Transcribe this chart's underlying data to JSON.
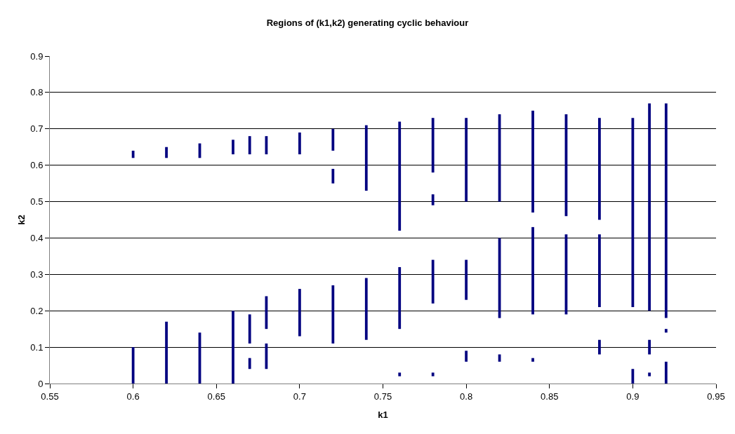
{
  "chart_data": {
    "type": "bar",
    "title": "Regions of (k1,k2) generating cyclic behaviour",
    "xlabel": "k1",
    "ylabel": "k2",
    "series": [
      {
        "color": "#000080",
        "x": [
          0.6,
          0.62,
          0.64,
          0.66,
          0.67,
          0.68,
          0.7,
          0.72,
          0.74,
          0.76,
          0.78,
          0.8,
          0.82,
          0.84,
          0.86,
          0.88,
          0.9,
          0.91,
          0.92
        ],
        "base": [
          0,
          0,
          0,
          0,
          0.04,
          0.04,
          0.13,
          0.11,
          0.12,
          0.02,
          0.02,
          0.06,
          0.06,
          0.06,
          0.19,
          0.08,
          0,
          0.02,
          0
        ],
        "values": [
          0.1,
          0.17,
          0.14,
          0.2,
          0.03,
          0.07,
          0.13,
          0.16,
          0.17,
          0.01,
          0.01,
          0.03,
          0.02,
          0.01,
          0.22,
          0.04,
          0.04,
          0.01,
          0.06
        ]
      },
      {
        "color": "#000080",
        "x": [
          0.6,
          0.62,
          0.64,
          0.66,
          0.67,
          0.68,
          0.7,
          0.72,
          0.74,
          0.76,
          0.78,
          0.8,
          0.82,
          0.84,
          0.86,
          0.88,
          0.9,
          0.91,
          0.92
        ],
        "base": [
          0.62,
          0.62,
          0.62,
          0.63,
          0.11,
          0.15,
          0.63,
          0.55,
          0.53,
          0.15,
          0.22,
          0.23,
          0.18,
          0.19,
          0.46,
          0.21,
          0.21,
          0.08,
          0.14
        ],
        "values": [
          0.02,
          0.03,
          0.04,
          0.04,
          0.08,
          0.09,
          0.06,
          0.04,
          0.18,
          0.17,
          0.12,
          0.11,
          0.22,
          0.24,
          0.28,
          0.2,
          0.52,
          0.04,
          0.01
        ]
      },
      {
        "color": "#000080",
        "x": [
          0.67,
          0.68,
          0.72,
          0.76,
          0.78,
          0.8,
          0.82,
          0.84,
          0.88,
          0.91,
          0.92
        ],
        "base": [
          0.63,
          0.63,
          0.64,
          0.42,
          0.49,
          0.5,
          0.5,
          0.47,
          0.45,
          0.2,
          0.18
        ],
        "values": [
          0.05,
          0.05,
          0.06,
          0.3,
          0.03,
          0.23,
          0.24,
          0.28,
          0.28,
          0.57,
          0.59
        ]
      },
      {
        "color": "#000080",
        "x": [
          0.78
        ],
        "base": [
          0.58
        ],
        "values": [
          0.15
        ]
      }
    ],
    "xlim": [
      0.55,
      0.95
    ],
    "xticks": [
      0.55,
      0.6,
      0.65,
      0.7,
      0.75,
      0.8,
      0.85,
      0.9,
      0.95
    ],
    "ylim": [
      0,
      0.9
    ],
    "yticks": [
      0,
      0.1,
      0.2,
      0.3,
      0.4,
      0.5,
      0.6,
      0.7,
      0.8,
      0.9
    ],
    "grid": "y"
  }
}
